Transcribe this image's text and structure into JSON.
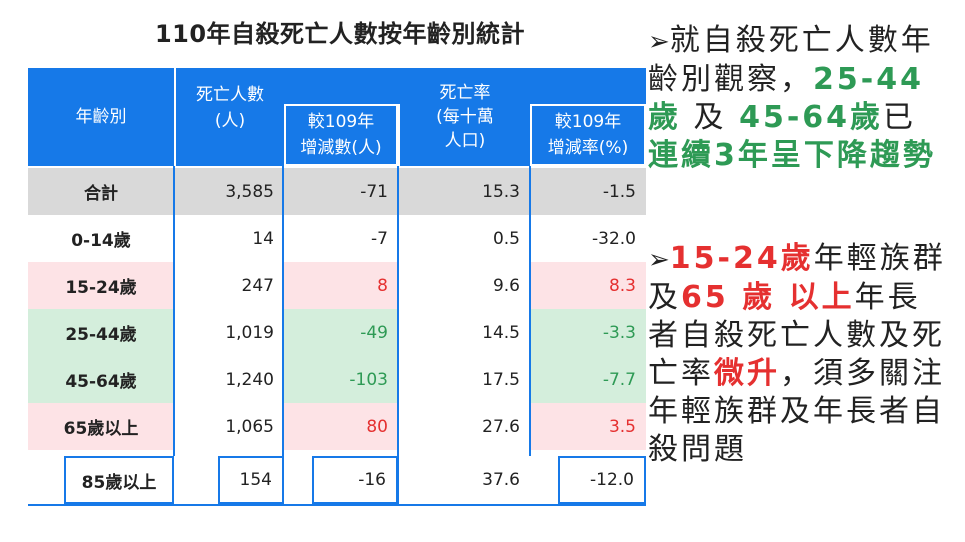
{
  "title": "110年自殺死亡人數按年齡別統計",
  "headers": {
    "age": "年齡別",
    "deaths": "死亡人數\n(人)",
    "deaths_change": "較109年\n增減數(人)",
    "rate": "死亡率\n(每十萬\n人口)",
    "rate_change": "較109年\n增減率(%)"
  },
  "rows": [
    {
      "age": "合計",
      "deaths": "3,585",
      "change": "-71",
      "rate": "15.3",
      "rate_change": "-1.5"
    },
    {
      "age": "0-14歲",
      "deaths": "14",
      "change": "-7",
      "rate": "0.5",
      "rate_change": "-32.0"
    },
    {
      "age": "15-24歲",
      "deaths": "247",
      "change": "8",
      "rate": "9.6",
      "rate_change": "8.3"
    },
    {
      "age": "25-44歲",
      "deaths": "1,019",
      "change": "-49",
      "rate": "14.5",
      "rate_change": "-3.3"
    },
    {
      "age": "45-64歲",
      "deaths": "1,240",
      "change": "-103",
      "rate": "17.5",
      "rate_change": "-7.7"
    },
    {
      "age": "65歲以上",
      "deaths": "1,065",
      "change": "80",
      "rate": "27.6",
      "rate_change": "3.5"
    },
    {
      "age": "85歲以上",
      "deaths": "154",
      "change": "-16",
      "rate": "37.6",
      "rate_change": "-12.0"
    }
  ],
  "bullets": {
    "arrow": "➢",
    "b1_p1": "就自殺死亡人數年齡別觀察，",
    "b1_g1": "25-44 歲",
    "b1_p2": " 及 ",
    "b1_g2": "45-64歲",
    "b1_p3": "已",
    "b1_g3": "連續3年呈下降趨勢",
    "b2_r1": "15-24歲",
    "b2_p1": "年輕族群及",
    "b2_r2": "65 歲 以上",
    "b2_p2": "年長者自殺死亡人數及死亡率",
    "b2_r3": "微升",
    "b2_p3": "，須多關注年輕族群及年長者自殺問題"
  },
  "colors": {
    "header_blue": "#1679e8",
    "total_gray": "#d9d9d9",
    "pink": "#fde3e6",
    "green_bg": "#d4eedc",
    "green_text": "#2e9a55",
    "red_text": "#e53030"
  }
}
